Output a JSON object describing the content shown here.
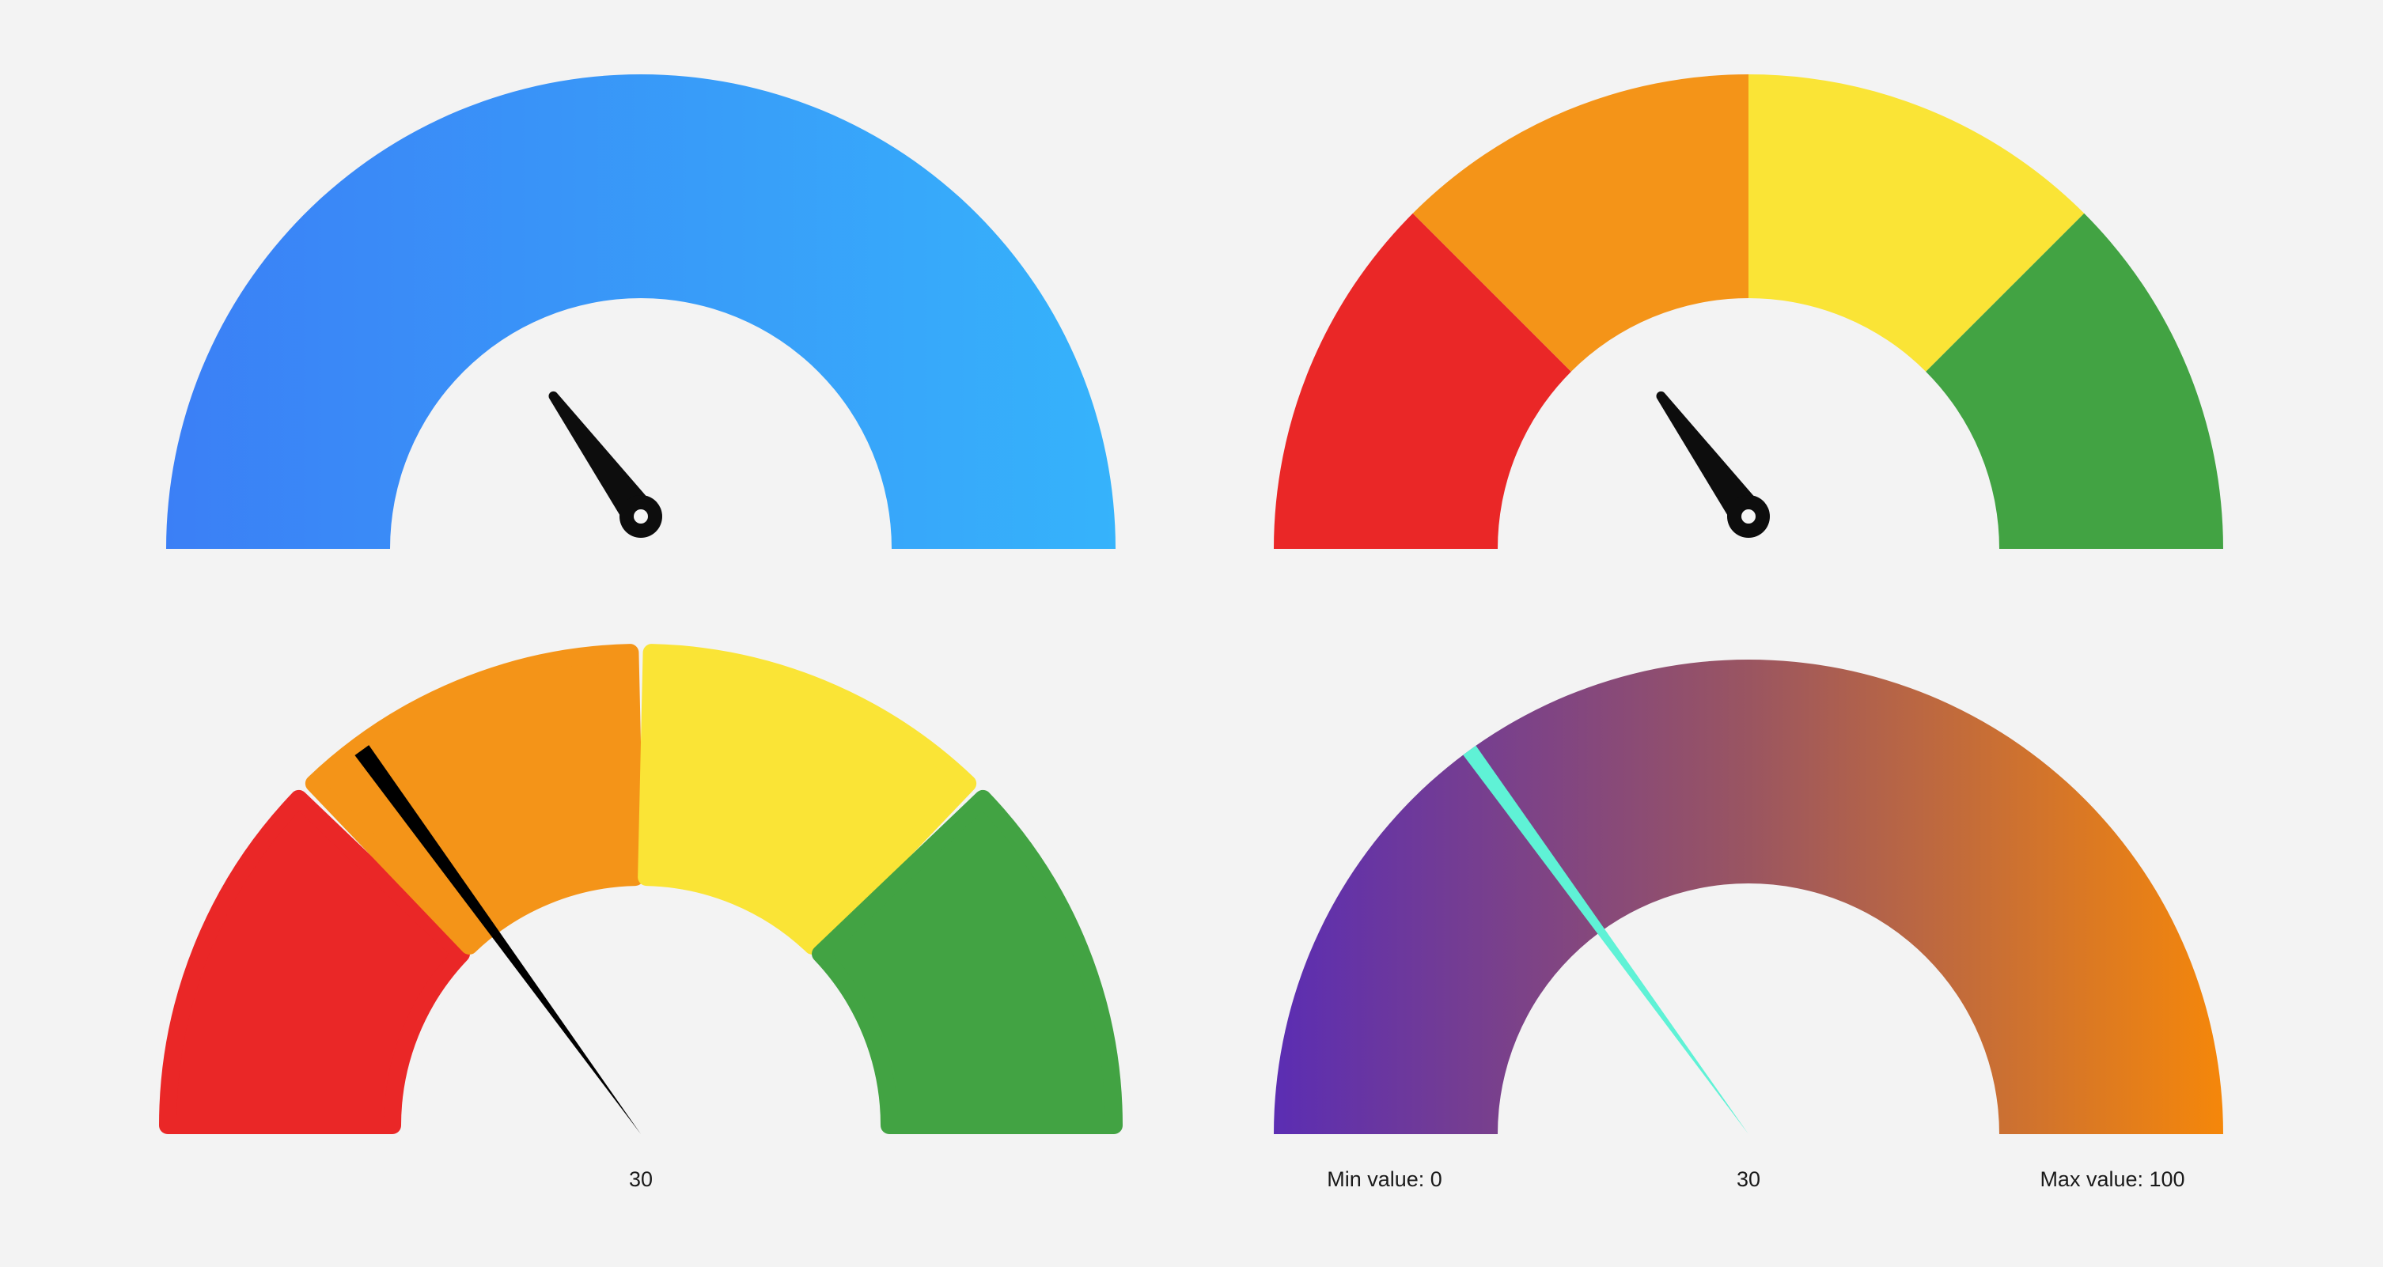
{
  "gauges": [
    {
      "id": "gradient-gauge-blue",
      "value": 30,
      "min": 0,
      "max": 100,
      "colors": [
        "#3b7ff6",
        "#36b3fb"
      ],
      "pointer_style": "needle-with-hub",
      "pointer_color": "#0d0d0d"
    },
    {
      "id": "segmented-gauge",
      "value": 30,
      "min": 0,
      "max": 100,
      "segments": [
        "#ea2727",
        "#f49418",
        "#fae436",
        "#42a343"
      ],
      "pointer_style": "needle-with-hub",
      "pointer_color": "#0d0d0d"
    },
    {
      "id": "rounded-segmented-gauge",
      "value": 30,
      "min": 0,
      "max": 100,
      "segments": [
        "#ea2727",
        "#f49418",
        "#fae436",
        "#42a343"
      ],
      "pointer_style": "triangle",
      "pointer_color": "#000000",
      "value_label": "30"
    },
    {
      "id": "gradient-gauge-purple-orange",
      "value": 30,
      "min": 0,
      "max": 100,
      "colors": [
        "#5b2db3",
        "#9a5561",
        "#f5870a"
      ],
      "pointer_style": "triangle",
      "pointer_color": "#5ff2d6",
      "value_label": "30",
      "min_label": "Min value: 0",
      "max_label": "Max value: 100"
    }
  ]
}
